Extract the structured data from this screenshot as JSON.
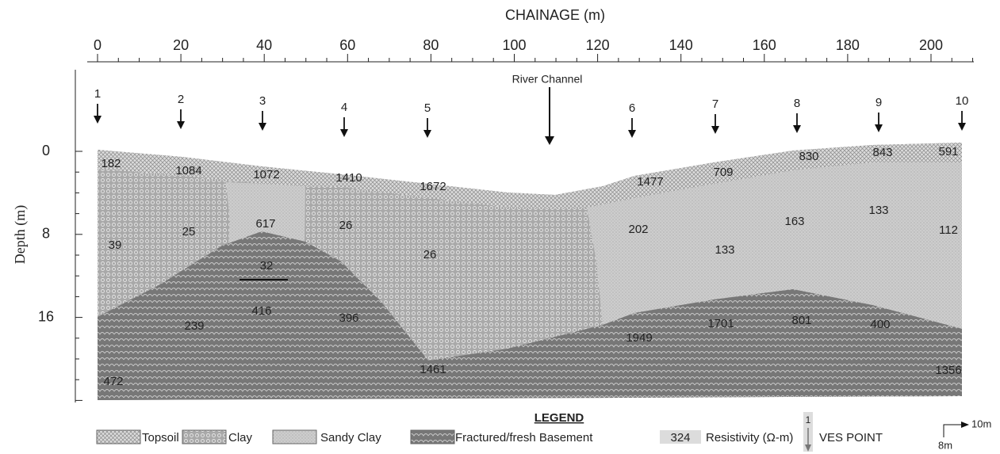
{
  "axes": {
    "x_title": "CHAINAGE (m)",
    "x_ticks": [
      "0",
      "20",
      "40",
      "60",
      "80",
      "100",
      "120",
      "140",
      "160",
      "180",
      "200"
    ],
    "y_title": "Depth (m)",
    "y_ticks": [
      "0",
      "8",
      "16"
    ]
  },
  "annotations": {
    "river_channel": "River Channel"
  },
  "ves_points": [
    "1",
    "2",
    "3",
    "4",
    "5",
    "6",
    "7",
    "8",
    "9",
    "10"
  ],
  "resistivity_labels": [
    "182",
    "1084",
    "1072",
    "1410",
    "1672",
    "1477",
    "709",
    "830",
    "843",
    "591",
    "39",
    "25",
    "617",
    "26",
    "26",
    "202",
    "133",
    "163",
    "133",
    "112",
    "32",
    "239",
    "416",
    "396",
    "1949",
    "1701",
    "801",
    "400",
    "472",
    "1461",
    "1356"
  ],
  "legend": {
    "title": "LEGEND",
    "items": [
      "Topsoil",
      "Clay",
      "Sandy Clay",
      "Fractured/fresh Basement"
    ],
    "resistivity_sample": "324",
    "resistivity_text": "Resistivity (Ω-m)",
    "ves_sample": "1",
    "ves_text": "VES POINT"
  },
  "scale": {
    "horizontal": "10m",
    "vertical": "8m"
  }
}
